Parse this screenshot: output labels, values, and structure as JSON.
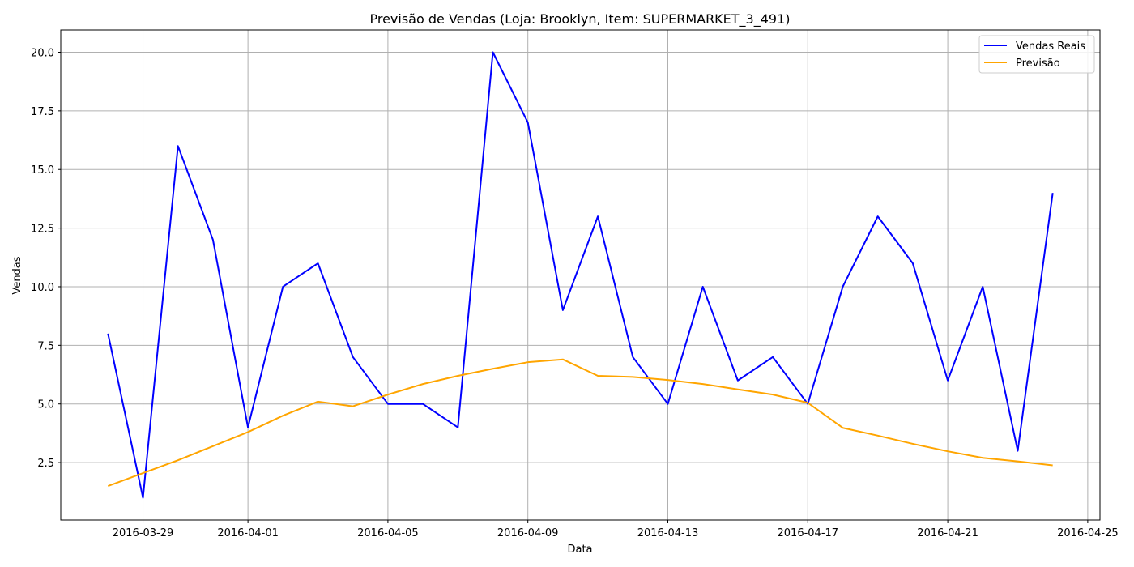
{
  "chart_data": {
    "type": "line",
    "title": "Previsão de Vendas (Loja: Brooklyn, Item: SUPERMARKET_3_491)",
    "xlabel": "Data",
    "ylabel": "Vendas",
    "x": [
      "2016-03-28",
      "2016-03-29",
      "2016-03-30",
      "2016-03-31",
      "2016-04-01",
      "2016-04-02",
      "2016-04-03",
      "2016-04-04",
      "2016-04-05",
      "2016-04-06",
      "2016-04-07",
      "2016-04-08",
      "2016-04-09",
      "2016-04-10",
      "2016-04-11",
      "2016-04-12",
      "2016-04-13",
      "2016-04-14",
      "2016-04-15",
      "2016-04-16",
      "2016-04-17",
      "2016-04-18",
      "2016-04-19",
      "2016-04-20",
      "2016-04-21",
      "2016-04-22",
      "2016-04-23",
      "2016-04-24"
    ],
    "series": [
      {
        "name": "Vendas Reais",
        "color": "#0000ff",
        "values": [
          8,
          1,
          16,
          12,
          4,
          10,
          11,
          7,
          5,
          5,
          4,
          20,
          17,
          9,
          13,
          7,
          5,
          10,
          6,
          7,
          5,
          10,
          13,
          11,
          6,
          10,
          3,
          14
        ]
      },
      {
        "name": "Previsão",
        "color": "#ffa500",
        "values": [
          1.5,
          2.05,
          2.6,
          3.2,
          3.8,
          4.5,
          5.1,
          4.9,
          5.4,
          5.85,
          6.2,
          6.5,
          6.78,
          6.9,
          6.2,
          6.15,
          6.02,
          5.85,
          5.62,
          5.4,
          5.05,
          3.98,
          3.65,
          3.3,
          2.98,
          2.7,
          2.55,
          2.38
        ]
      }
    ],
    "xticks": [
      "2016-03-29",
      "2016-04-01",
      "2016-04-05",
      "2016-04-09",
      "2016-04-13",
      "2016-04-17",
      "2016-04-21",
      "2016-04-25"
    ],
    "yticks": [
      "2.5",
      "5.0",
      "7.5",
      "10.0",
      "12.5",
      "15.0",
      "17.5",
      "20.0"
    ],
    "xlim": [
      "2016-03-26.65",
      "2016-04-25.35"
    ],
    "ylim": [
      0.05,
      20.95
    ],
    "grid": true,
    "legend_position": "top-right"
  }
}
